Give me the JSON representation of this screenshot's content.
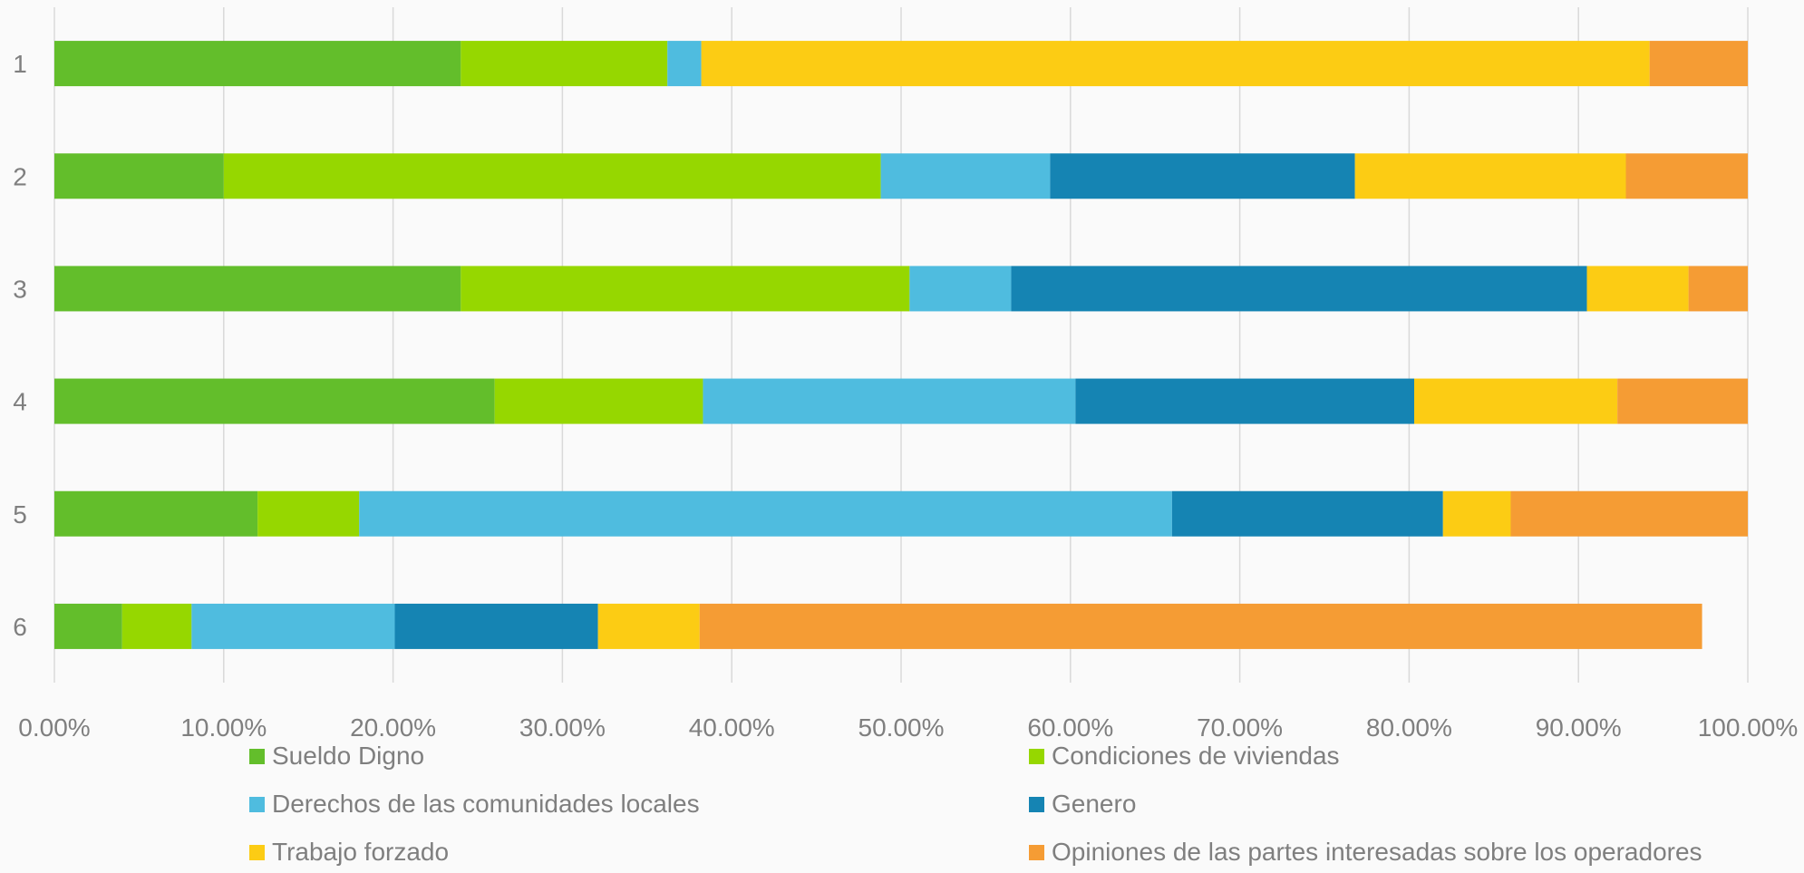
{
  "chart_data": {
    "type": "bar",
    "orientation": "horizontal",
    "stacked": true,
    "categories": [
      "1",
      "2",
      "3",
      "4",
      "5",
      "6"
    ],
    "series": [
      {
        "name": "Sueldo Digno",
        "color": "#63be2b",
        "values": [
          24,
          10,
          24,
          26,
          12,
          4
        ]
      },
      {
        "name": "Condiciones de viviendas",
        "color": "#96d700",
        "values": [
          12.2,
          38.8,
          26.5,
          12.3,
          6,
          4.1
        ]
      },
      {
        "name": "Derechos de las comunidades locales",
        "color": "#4fbcdf",
        "values": [
          2,
          10,
          6,
          22,
          48,
          12
        ]
      },
      {
        "name": "Genero",
        "color": "#1584b3",
        "values": [
          0,
          18,
          34,
          20,
          16,
          12
        ]
      },
      {
        "name": "Trabajo forzado",
        "color": "#fccc14",
        "values": [
          56,
          16,
          6,
          12,
          4,
          6
        ]
      },
      {
        "name": "Opiniones de las partes interesadas sobre los operadores",
        "color": "#f59c34",
        "values": [
          5.8,
          7.2,
          3.5,
          7.7,
          14,
          59.2
        ]
      }
    ],
    "xlim": [
      0,
      100
    ],
    "xticks": [
      "0.00%",
      "10.00%",
      "20.00%",
      "30.00%",
      "40.00%",
      "50.00%",
      "60.00%",
      "70.00%",
      "80.00%",
      "90.00%",
      "100.00%"
    ],
    "grid": true,
    "legend_position": "bottom",
    "title": "",
    "xlabel": "",
    "ylabel": ""
  }
}
